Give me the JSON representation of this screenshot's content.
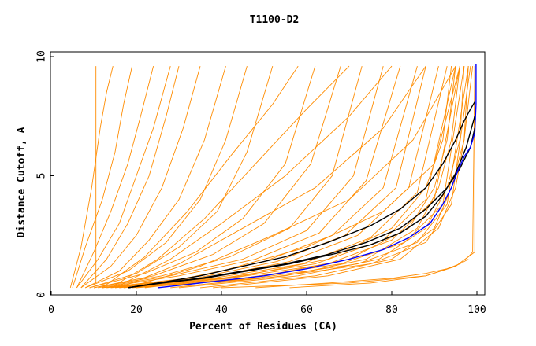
{
  "chart_data": {
    "type": "line",
    "title": "T1100-D2",
    "xlabel": "Percent of Residues (CA)",
    "ylabel": "Distance Cutoff, A",
    "xlim": [
      0,
      100
    ],
    "ylim": [
      0,
      10
    ],
    "x_ticks": [
      0,
      20,
      40,
      60,
      80,
      100
    ],
    "y_ticks": [
      0,
      5,
      10
    ],
    "grid": false,
    "colors": {
      "orange": "#ff8c00",
      "black": "#000000",
      "blue": "#0000ff"
    },
    "series": [
      {
        "color": "orange",
        "x": [
          10.5,
          10.5,
          10.5,
          10.5
        ],
        "y": [
          0.5,
          3.0,
          6.0,
          9.6
        ]
      },
      {
        "color": "orange",
        "x": [
          4.5,
          7,
          9.5,
          11.5,
          13,
          14.5
        ],
        "y": [
          0.3,
          2.0,
          4.5,
          7.0,
          8.5,
          9.6
        ]
      },
      {
        "color": "orange",
        "x": [
          5,
          8,
          12,
          15,
          17,
          19
        ],
        "y": [
          0.3,
          2.0,
          4.0,
          6.0,
          8.0,
          9.6
        ]
      },
      {
        "color": "orange",
        "x": [
          6,
          10,
          14,
          18,
          21,
          24
        ],
        "y": [
          0.3,
          1.8,
          3.5,
          5.5,
          7.5,
          9.6
        ]
      },
      {
        "color": "orange",
        "x": [
          6,
          11,
          16,
          20,
          24,
          28
        ],
        "y": [
          0.3,
          1.5,
          3.0,
          5.0,
          7.0,
          9.6
        ]
      },
      {
        "color": "orange",
        "x": [
          7,
          13,
          18,
          23,
          27,
          30
        ],
        "y": [
          0.3,
          1.5,
          3.0,
          5.0,
          7.5,
          9.6
        ]
      },
      {
        "color": "orange",
        "x": [
          7,
          14,
          20,
          26,
          31,
          35
        ],
        "y": [
          0.3,
          1.2,
          2.5,
          4.5,
          7.0,
          9.6
        ]
      },
      {
        "color": "orange",
        "x": [
          8,
          16,
          23,
          30,
          36,
          41
        ],
        "y": [
          0.3,
          1.0,
          2.3,
          4.0,
          6.5,
          9.6
        ]
      },
      {
        "color": "orange",
        "x": [
          8,
          18,
          27,
          35,
          41,
          46
        ],
        "y": [
          0.3,
          1.0,
          2.2,
          4.0,
          6.5,
          9.6
        ]
      },
      {
        "color": "orange",
        "x": [
          9,
          20,
          30,
          39,
          46,
          52
        ],
        "y": [
          0.3,
          0.9,
          2.0,
          3.5,
          6.0,
          9.6
        ]
      },
      {
        "color": "orange",
        "x": [
          9,
          22,
          34,
          45,
          55,
          62
        ],
        "y": [
          0.3,
          0.9,
          1.8,
          3.2,
          5.5,
          9.6
        ]
      },
      {
        "color": "orange",
        "x": [
          10,
          24,
          38,
          50,
          61,
          68
        ],
        "y": [
          0.3,
          0.8,
          1.7,
          3.0,
          5.5,
          9.6
        ]
      },
      {
        "color": "orange",
        "x": [
          10,
          26,
          42,
          56,
          66,
          73
        ],
        "y": [
          0.3,
          0.8,
          1.6,
          2.8,
          5.0,
          9.6
        ]
      },
      {
        "color": "orange",
        "x": [
          11,
          28,
          45,
          60,
          71,
          78
        ],
        "y": [
          0.3,
          0.8,
          1.5,
          2.7,
          5.0,
          9.6
        ]
      },
      {
        "color": "orange",
        "x": [
          12,
          30,
          48,
          63,
          74,
          82
        ],
        "y": [
          0.3,
          0.8,
          1.5,
          2.6,
          4.8,
          9.6
        ]
      },
      {
        "color": "orange",
        "x": [
          12,
          32,
          50,
          66,
          78,
          86
        ],
        "y": [
          0.3,
          0.7,
          1.4,
          2.5,
          4.5,
          9.6
        ]
      },
      {
        "color": "orange",
        "x": [
          13,
          34,
          53,
          69,
          81,
          88
        ],
        "y": [
          0.3,
          0.7,
          1.4,
          2.5,
          4.5,
          9.6
        ]
      },
      {
        "color": "orange",
        "x": [
          14,
          36,
          56,
          72,
          84,
          91
        ],
        "y": [
          0.3,
          0.7,
          1.4,
          2.5,
          4.5,
          9.6
        ]
      },
      {
        "color": "orange",
        "x": [
          15,
          38,
          59,
          75,
          86,
          93
        ],
        "y": [
          0.3,
          0.7,
          1.3,
          2.4,
          4.3,
          9.6
        ]
      },
      {
        "color": "orange",
        "x": [
          16,
          40,
          62,
          78,
          88,
          95
        ],
        "y": [
          0.3,
          0.7,
          1.3,
          2.3,
          4.0,
          9.6
        ]
      },
      {
        "color": "orange",
        "x": [
          17,
          42,
          65,
          80,
          90,
          96
        ],
        "y": [
          0.3,
          0.7,
          1.3,
          2.3,
          4.0,
          9.6
        ]
      },
      {
        "color": "orange",
        "x": [
          18,
          45,
          68,
          83,
          92,
          97
        ],
        "y": [
          0.3,
          0.7,
          1.3,
          2.2,
          3.8,
          9.6
        ]
      },
      {
        "color": "orange",
        "x": [
          19,
          48,
          72,
          86,
          93,
          98
        ],
        "y": [
          0.3,
          0.7,
          1.3,
          2.2,
          3.8,
          9.6
        ]
      },
      {
        "color": "orange",
        "x": [
          20,
          50,
          75,
          88,
          94,
          98.5
        ],
        "y": [
          0.3,
          0.7,
          1.3,
          2.2,
          3.8,
          9.6
        ]
      },
      {
        "color": "orange",
        "x": [
          20,
          40,
          60,
          78,
          90,
          96
        ],
        "y": [
          0.3,
          1.0,
          2.0,
          3.5,
          5.5,
          9.6
        ]
      },
      {
        "color": "orange",
        "x": [
          18,
          35,
          52,
          70,
          85,
          95
        ],
        "y": [
          0.3,
          1.2,
          2.5,
          4.0,
          6.5,
          9.6
        ]
      },
      {
        "color": "orange",
        "x": [
          16,
          30,
          45,
          62,
          78,
          88
        ],
        "y": [
          0.3,
          1.3,
          2.8,
          4.5,
          7.0,
          9.6
        ]
      },
      {
        "color": "orange",
        "x": [
          15,
          28,
          40,
          55,
          70,
          80
        ],
        "y": [
          0.3,
          1.5,
          3.0,
          5.0,
          7.5,
          9.6
        ]
      },
      {
        "color": "orange",
        "x": [
          14,
          25,
          36,
          48,
          60,
          70
        ],
        "y": [
          0.3,
          1.5,
          3.2,
          5.5,
          7.8,
          9.6
        ]
      },
      {
        "color": "orange",
        "x": [
          12,
          22,
          32,
          42,
          52,
          58
        ],
        "y": [
          0.3,
          1.6,
          3.5,
          5.8,
          8.0,
          9.6
        ]
      },
      {
        "color": "orange",
        "x": [
          22,
          45,
          65,
          80,
          88,
          92,
          94
        ],
        "y": [
          0.3,
          0.8,
          1.5,
          2.8,
          4.5,
          6.5,
          9.6
        ]
      },
      {
        "color": "orange",
        "x": [
          25,
          50,
          70,
          84,
          90,
          93,
          95
        ],
        "y": [
          0.3,
          0.8,
          1.5,
          2.8,
          4.5,
          6.5,
          9.6
        ]
      },
      {
        "color": "orange",
        "x": [
          28,
          55,
          74,
          86,
          91,
          94,
          96
        ],
        "y": [
          0.3,
          0.8,
          1.5,
          2.8,
          4.5,
          6.5,
          9.6
        ]
      },
      {
        "color": "orange",
        "x": [
          30,
          58,
          77,
          88,
          93,
          96,
          97
        ],
        "y": [
          0.3,
          0.8,
          1.5,
          2.8,
          4.5,
          6.5,
          9.6
        ]
      },
      {
        "color": "orange",
        "x": [
          35,
          62,
          80,
          90,
          94,
          97,
          98
        ],
        "y": [
          0.3,
          0.8,
          1.5,
          2.8,
          4.5,
          6.5,
          9.6
        ]
      },
      {
        "color": "orange",
        "x": [
          38,
          65,
          82,
          91,
          95,
          97,
          99
        ],
        "y": [
          0.3,
          0.8,
          1.5,
          2.8,
          4.5,
          6.5,
          9.6
        ]
      },
      {
        "color": "orange",
        "x": [
          40,
          70,
          88,
          95,
          98,
          99,
          99.5
        ],
        "y": [
          0.3,
          0.5,
          0.8,
          1.2,
          1.6,
          1.8,
          9.6
        ]
      },
      {
        "color": "orange",
        "x": [
          48,
          65,
          80,
          88,
          93,
          96,
          98
        ],
        "y": [
          0.3,
          0.5,
          0.7,
          0.9,
          1.1,
          1.3,
          1.5
        ]
      },
      {
        "color": "orange",
        "x": [
          56,
          75,
          88,
          95,
          98,
          99.5,
          99.5
        ],
        "y": [
          0.3,
          0.5,
          0.8,
          1.2,
          1.6,
          1.8,
          9.6
        ]
      },
      {
        "color": "black",
        "x": [
          18,
          25,
          35,
          45,
          55,
          65,
          75,
          82,
          88,
          92,
          95,
          97,
          98.5,
          99.5
        ],
        "y": [
          0.3,
          0.5,
          0.8,
          1.2,
          1.6,
          2.2,
          2.9,
          3.6,
          4.5,
          5.5,
          6.5,
          7.3,
          7.8,
          8.1
        ]
      },
      {
        "color": "black",
        "x": [
          18,
          25,
          35,
          45,
          55,
          65,
          74,
          82,
          88,
          93,
          96,
          98.5,
          99.5
        ],
        "y": [
          0.3,
          0.5,
          0.7,
          1.0,
          1.3,
          1.7,
          2.2,
          2.8,
          3.6,
          4.5,
          5.3,
          6.2,
          7.0
        ]
      },
      {
        "color": "black",
        "x": [
          18,
          26,
          36,
          46,
          56,
          66,
          75,
          82,
          88,
          92,
          95,
          97.5,
          99.5
        ],
        "y": [
          0.3,
          0.5,
          0.7,
          1.0,
          1.3,
          1.7,
          2.1,
          2.6,
          3.3,
          4.2,
          5.1,
          6.2,
          7.5
        ]
      },
      {
        "color": "blue",
        "x": [
          25,
          30,
          40,
          50,
          60,
          70,
          78,
          84,
          89,
          92,
          94,
          95.5,
          97,
          98.5,
          99.5,
          99.8,
          99.8
        ],
        "y": [
          0.3,
          0.4,
          0.6,
          0.8,
          1.1,
          1.5,
          1.9,
          2.4,
          3.0,
          3.8,
          4.5,
          5.2,
          5.8,
          6.2,
          6.8,
          8.0,
          9.7
        ]
      }
    ]
  }
}
